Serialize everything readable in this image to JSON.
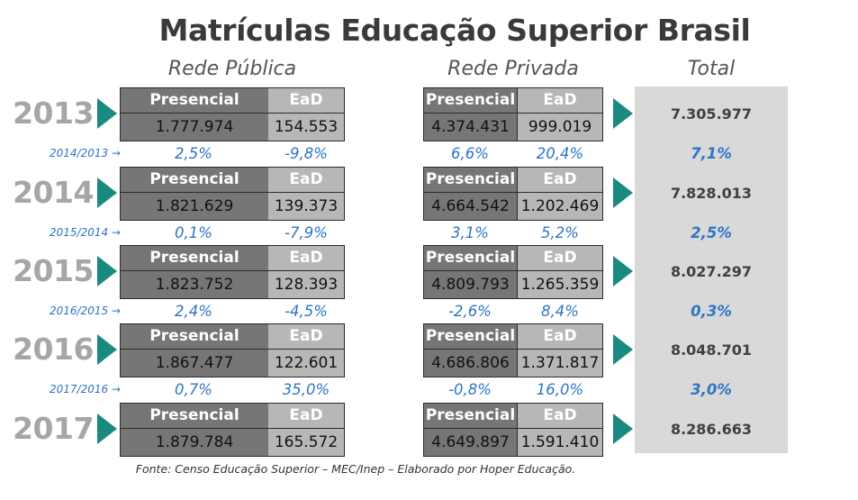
{
  "chart_data": {
    "type": "table",
    "title": "Matrículas Educação Superior Brasil",
    "column_groups": [
      "Rede Pública",
      "Rede Privada",
      "Total"
    ],
    "cell_labels": {
      "presencial": "Presencial",
      "ead": "EaD"
    },
    "years": [
      {
        "year": "2013",
        "publica": {
          "presencial": "1.777.974",
          "ead": "154.553"
        },
        "privada": {
          "presencial": "4.374.431",
          "ead": "999.019"
        },
        "total": "7.305.977"
      },
      {
        "year": "2014",
        "publica": {
          "presencial": "1.821.629",
          "ead": "139.373"
        },
        "privada": {
          "presencial": "4.664.542",
          "ead": "1.202.469"
        },
        "total": "7.828.013"
      },
      {
        "year": "2015",
        "publica": {
          "presencial": "1.823.752",
          "ead": "128.393"
        },
        "privada": {
          "presencial": "4.809.793",
          "ead": "1.265.359"
        },
        "total": "8.027.297"
      },
      {
        "year": "2016",
        "publica": {
          "presencial": "1.867.477",
          "ead": "122.601"
        },
        "privada": {
          "presencial": "4.686.806",
          "ead": "1.371.817"
        },
        "total": "8.048.701"
      },
      {
        "year": "2017",
        "publica": {
          "presencial": "1.879.784",
          "ead": "165.572"
        },
        "privada": {
          "presencial": "4.649.897",
          "ead": "1.591.410"
        },
        "total": "8.286.663"
      }
    ],
    "growth": [
      {
        "label": "2014/2013 →",
        "publica_presencial": "2,5%",
        "publica_ead": "-9,8%",
        "privada_presencial": "6,6%",
        "privada_ead": "20,4%",
        "total": "7,1%"
      },
      {
        "label": "2015/2014 →",
        "publica_presencial": "0,1%",
        "publica_ead": "-7,9%",
        "privada_presencial": "3,1%",
        "privada_ead": "5,2%",
        "total": "2,5%"
      },
      {
        "label": "2016/2015 →",
        "publica_presencial": "2,4%",
        "publica_ead": "-4,5%",
        "privada_presencial": "-2,6%",
        "privada_ead": "8,4%",
        "total": "0,3%"
      },
      {
        "label": "2017/2016 →",
        "publica_presencial": "0,7%",
        "publica_ead": "35,0%",
        "privada_presencial": "-0,8%",
        "privada_ead": "16,0%",
        "total": "3,0%"
      }
    ],
    "source": "Fonte: Censo Educação Superior – MEC/Inep – Elaborado por Hoper Educação."
  },
  "colors": {
    "title": "#3a3a3a",
    "year": "#a6a6a6",
    "arrow": "#1a8a80",
    "presencial_fill": "#767676",
    "ead_fill": "#b7b7b7",
    "total_panel": "#d9d9d9",
    "growth_text": "#2e75c5"
  }
}
